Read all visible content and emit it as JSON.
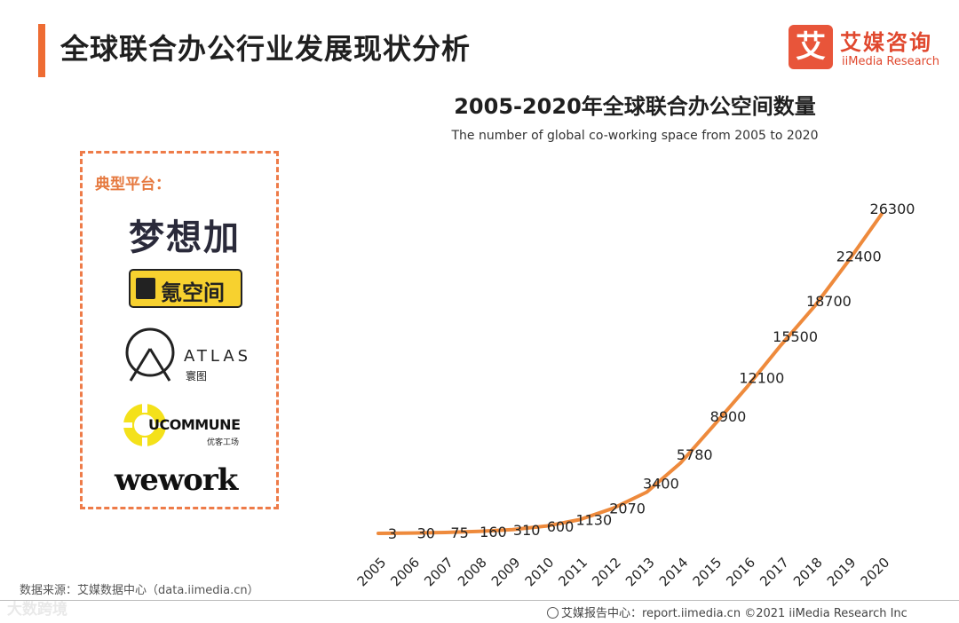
{
  "header": {
    "title": "全球联合办公行业发展现状分析",
    "brand_cn": "艾媒咨询",
    "brand_en": "iiMedia Research",
    "brand_mark": "艾"
  },
  "panel": {
    "label": "典型平台：",
    "logos": {
      "mengxiangjia": "梦想加",
      "dankongjian": "氪空间",
      "atlas_en": "ATLAS",
      "atlas_cn": "寰图",
      "ucommune_en": "UCOMMUNE",
      "ucommune_cn": "优客工场",
      "wework": "wework"
    }
  },
  "chart_data": {
    "type": "line",
    "title": "2005-2020年全球联合办公空间数量",
    "subtitle": "The number of global co-working space from 2005 to 2020",
    "categories": [
      "2005",
      "2006",
      "2007",
      "2008",
      "2009",
      "2010",
      "2011",
      "2012",
      "2013",
      "2014",
      "2015",
      "2016",
      "2017",
      "2018",
      "2019",
      "2020"
    ],
    "values": [
      3,
      30,
      75,
      160,
      310,
      600,
      1130,
      2070,
      3400,
      5780,
      8900,
      12100,
      15500,
      18700,
      22400,
      26300
    ],
    "xlabel": "",
    "ylabel": "",
    "ylim": [
      0,
      27000
    ],
    "line_color": "#ee8a3c",
    "grid": false,
    "legend": "none"
  },
  "footer": {
    "source": "数据来源：艾媒数据中心（data.iimedia.cn）",
    "right": "艾媒报告中心：report.iimedia.cn   ©2021  iiMedia Research  Inc",
    "watermark": "大数跨境"
  },
  "colors": {
    "accent": "#ee6c33",
    "brand": "#e0482e"
  }
}
